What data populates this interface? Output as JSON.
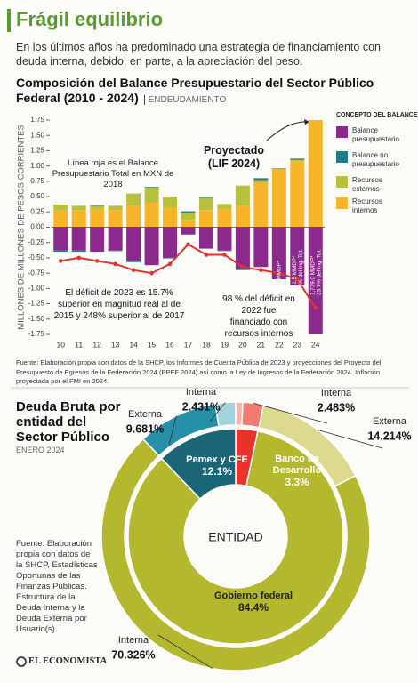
{
  "header": {
    "title": "Frágil equilibrio",
    "subtitle": "En los últimos años ha predominado una estrategia de financiamiento con deuda interna, debido, en parte, a la apreciación del peso."
  },
  "chart_data": [
    {
      "type": "bar",
      "stacked": true,
      "title": "Composición del Balance Presupuestario del Sector Público Federal (2010 - 2024)",
      "subtitle": "ENDEUDAMIENTO",
      "ylabel": "MILLONES DE MILLONES DE PESOS CORRIENTES",
      "legend_title": "CONCEPTO DEL BALANCE",
      "categories": [
        "10",
        "11",
        "12",
        "13",
        "14",
        "15",
        "16",
        "17",
        "18",
        "19",
        "20",
        "21",
        "22",
        "23",
        "24"
      ],
      "series": [
        {
          "name": "Balance presupuestario",
          "color": "#8b2a8c",
          "values": [
            -0.38,
            -0.38,
            -0.4,
            -0.38,
            -0.55,
            -0.62,
            -0.5,
            -0.12,
            -0.35,
            -0.38,
            -0.68,
            -0.65,
            -0.85,
            -0.95,
            -1.75
          ]
        },
        {
          "name": "Balance no presupuestario",
          "color": "#1e7d8c",
          "values": [
            -0.02,
            -0.02,
            0.01,
            -0.01,
            -0.02,
            0.01,
            -0.01,
            0.02,
            0.01,
            -0.01,
            -0.02,
            0.03,
            0.01,
            0.02,
            0
          ]
        },
        {
          "name": "Recursos externos",
          "color": "#b9c03c",
          "values": [
            0.1,
            0.07,
            0.05,
            0.07,
            0.2,
            0.25,
            0.18,
            0.12,
            0.2,
            0.08,
            0.33,
            0.05,
            0,
            0.02,
            0
          ]
        },
        {
          "name": "Recursos internos",
          "color": "#f9b52a",
          "values": [
            0.27,
            0.28,
            0.3,
            0.28,
            0.35,
            0.4,
            0.32,
            0.12,
            0.28,
            0.3,
            0.35,
            0.72,
            0.95,
            1.08,
            1.75
          ]
        }
      ],
      "line": {
        "color": "#e2332c",
        "values": [
          -0.55,
          -0.5,
          -0.55,
          -0.6,
          -0.7,
          -0.75,
          -0.6,
          -0.28,
          -0.45,
          -0.45,
          -0.65,
          -0.7,
          -0.75,
          -0.85,
          -1.32
        ]
      },
      "ylim": [
        -1.75,
        1.75
      ],
      "yticks": [
        1.75,
        {
          "value": 1.5,
          "label": "1.50"
        },
        1.25,
        {
          "value": 1,
          "label": "1.00"
        },
        0.75,
        {
          "value": 0.5,
          "label": "0.50"
        },
        0.25,
        {
          "value": 0,
          "label": "0.00"
        },
        -0.25,
        {
          "value": -0.5,
          "label": "-0.50"
        },
        -0.75,
        {
          "value": -1,
          "label": "-1.00"
        },
        -1.25,
        {
          "value": -1.5,
          "label": "-1.50"
        },
        -1.75
      ],
      "annotations": [
        "Línea roja es el Balance Presupuestario Total en MXN de 2018",
        "Proyectado (LIF 2024)",
        "El déficit de 2023 es 15.7% superior en magnitud real al de 2015 y 248% superior al de 2017",
        "98 % del déficit en 2022 fue financiado con recursos internos"
      ],
      "bar_labels": [
        "951.3 MMDP*",
        "1,071.5 MMDP*",
        "15.7% del Ing. Tot.",
        "1,739.0 MMDP*",
        "23.7% del Ing. Tot."
      ],
      "source": "Fuente: Elaboración propia con datos de la SHCP, los Informes de Cuenta Pública de 2023 y proyecciones del Proyecto del Presupuesto de Egresos de la Federación 2024 (PPEF 2024) así como la Ley de Ingresos de la Federación 2024. Inflación proyectada por el FMI en 2024."
    },
    {
      "type": "donut",
      "title": "Deuda Bruta por entidad del Sector Público",
      "subtitle": "ENERO 2024",
      "center_label": "ENTIDAD",
      "inner": {
        "labels": [
          "Banco de Desarrollo",
          "Gobierno federal",
          "Pemex y CFE"
        ],
        "values": [
          3.3,
          84.4,
          12.1
        ],
        "value_labels": [
          "3.3%",
          "84.4%",
          "12.1%"
        ],
        "colors": [
          "#e8322a",
          "#b3b82f",
          "#1b6676"
        ]
      },
      "outer": {
        "labels": [
          null,
          "Interna",
          "Externa",
          "Interna",
          "Externa",
          "Interna"
        ],
        "values": [
          0.865,
          2.483,
          14.214,
          70.326,
          9.681,
          2.431
        ],
        "value_labels": [
          null,
          "2.483%",
          "14.214%",
          "70.326%",
          "9.681%",
          "2.431%"
        ],
        "colors": [
          "#f6b3ae",
          "#ef7b72",
          "#ddd98f",
          "#b3b82f",
          "#2590a8",
          "#a3d4dc"
        ]
      },
      "source": "Fuente: Elaboración propia con datos de la SHCP, Estadísticas Oportunas de las Finanzas Públicas. Estructura de la Deuda Interna y la Deuda Externa por Usuario(s)."
    }
  ],
  "footer": {
    "logo": "EL ECONOMISTA"
  }
}
